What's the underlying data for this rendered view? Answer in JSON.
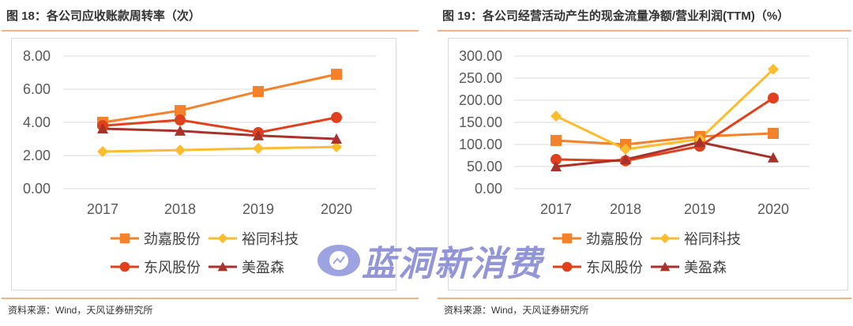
{
  "chart_data": [
    {
      "type": "line",
      "title": "图 18：各公司应收账款周转率（次）",
      "categories": [
        "2017",
        "2018",
        "2019",
        "2020"
      ],
      "ylim": [
        0,
        8
      ],
      "yticks": [
        "0.00",
        "2.00",
        "4.00",
        "6.00",
        "8.00"
      ],
      "grid": true,
      "legend_position": "bottom",
      "series": [
        {
          "name": "劲嘉股份",
          "marker": "square",
          "color": "#f5822a",
          "values": [
            4.0,
            4.71,
            5.86,
            6.9
          ]
        },
        {
          "name": "裕同科技",
          "marker": "diamond",
          "color": "#fbbc2d",
          "values": [
            2.24,
            2.33,
            2.43,
            2.52
          ]
        },
        {
          "name": "东风股份",
          "marker": "circle",
          "color": "#e0401c",
          "values": [
            3.8,
            4.14,
            3.38,
            4.29
          ]
        },
        {
          "name": "美盈森",
          "marker": "triangle",
          "color": "#a8322a",
          "values": [
            3.62,
            3.48,
            3.2,
            3.0
          ]
        }
      ],
      "source": "资料来源：Wind，天风证券研究所"
    },
    {
      "type": "line",
      "title": "图 19：各公司经营活动产生的现金流量净额/营业利润(TTM)（%）",
      "categories": [
        "2017",
        "2018",
        "2019",
        "2020"
      ],
      "ylim": [
        0,
        300
      ],
      "yticks": [
        "0.00",
        "50.00",
        "100.00",
        "150.00",
        "200.00",
        "250.00",
        "300.00"
      ],
      "grid": true,
      "legend_position": "bottom",
      "series": [
        {
          "name": "劲嘉股份",
          "marker": "square",
          "color": "#f5822a",
          "values": [
            109,
            100,
            118,
            125
          ]
        },
        {
          "name": "裕同科技",
          "marker": "diamond",
          "color": "#fbbc2d",
          "values": [
            164,
            89,
            112,
            270
          ]
        },
        {
          "name": "东风股份",
          "marker": "circle",
          "color": "#e0401c",
          "values": [
            66,
            63,
            96,
            205
          ]
        },
        {
          "name": "美盈森",
          "marker": "triangle",
          "color": "#a8322a",
          "values": [
            50,
            66,
            105,
            70
          ]
        }
      ],
      "source": "资料来源：Wind，天风证券研究所"
    }
  ],
  "watermark": "蓝洞新消费"
}
